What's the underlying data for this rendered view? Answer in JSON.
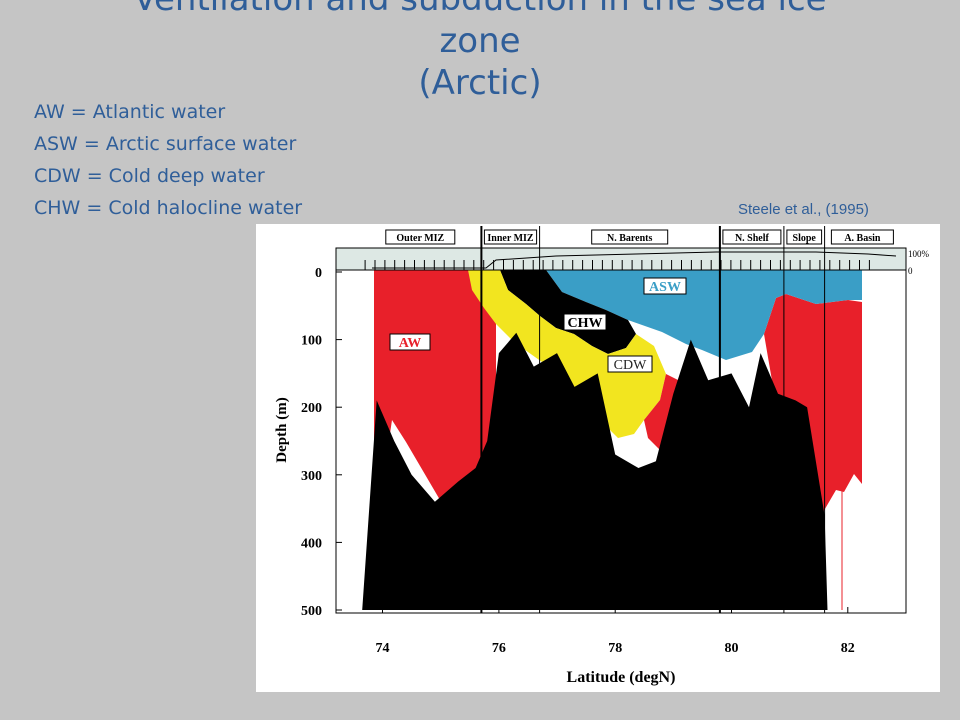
{
  "slide": {
    "title_line1": "Ventilation and subduction in the sea ice",
    "title_line2": "zone",
    "title_line3": "(Arctic)",
    "legend": [
      "AW = Atlantic water",
      "ASW = Arctic surface water",
      "CDW = Cold deep water",
      "CHW = Cold halocline water"
    ],
    "citation": "Steele et al., (1995)"
  },
  "chart_data": {
    "type": "heatmap",
    "xlabel": "Latitude (degN)",
    "ylabel": "Depth (m)",
    "xlim": [
      73.2,
      83.0
    ],
    "ylim": [
      0,
      500
    ],
    "y_inverted": true,
    "x_ticks": [
      "74",
      "76",
      "78",
      "80",
      "82"
    ],
    "y_ticks": [
      "0",
      "100",
      "200",
      "300",
      "400",
      "500"
    ],
    "ice_scale_labels": [
      "100%",
      "0"
    ],
    "regions": [
      {
        "label": "Outer MIZ",
        "from": 73.6,
        "to": 75.7
      },
      {
        "label": "Inner MIZ",
        "from": 75.7,
        "to": 76.7
      },
      {
        "label": "N. Barents",
        "from": 76.7,
        "to": 79.8
      },
      {
        "label": "N. Shelf",
        "from": 79.8,
        "to": 80.9
      },
      {
        "label": "Slope",
        "from": 80.9,
        "to": 81.6
      },
      {
        "label": "A. Basin",
        "from": 81.6,
        "to": 82.9
      }
    ],
    "water_masses": [
      {
        "label": "AW",
        "color": "#e8202a"
      },
      {
        "label": "ASW",
        "color": "#3a9ec6"
      },
      {
        "label": "CHW",
        "color": "#000000"
      },
      {
        "label": "CDW",
        "color": "#f2e51f"
      }
    ],
    "bottom_depth_profile": [
      [
        73.65,
        500
      ],
      [
        73.9,
        190
      ],
      [
        74.2,
        250
      ],
      [
        74.5,
        300
      ],
      [
        74.9,
        340
      ],
      [
        75.3,
        310
      ],
      [
        75.6,
        290
      ],
      [
        75.8,
        250
      ],
      [
        76.0,
        120
      ],
      [
        76.3,
        90
      ],
      [
        76.6,
        140
      ],
      [
        77.0,
        120
      ],
      [
        77.3,
        170
      ],
      [
        77.7,
        150
      ],
      [
        78.0,
        270
      ],
      [
        78.4,
        290
      ],
      [
        78.7,
        280
      ],
      [
        79.0,
        180
      ],
      [
        79.3,
        100
      ],
      [
        79.6,
        160
      ],
      [
        80.0,
        150
      ],
      [
        80.3,
        200
      ],
      [
        80.5,
        120
      ],
      [
        80.8,
        180
      ],
      [
        81.1,
        190
      ],
      [
        81.3,
        200
      ],
      [
        81.6,
        360
      ],
      [
        81.65,
        500
      ]
    ]
  },
  "colors": {
    "title": "#2f5e99",
    "background": "#c5c5c5",
    "atlantic_water": "#e8202a",
    "arctic_surface_water": "#3a9ec6",
    "cold_deep_water": "#f2e51f",
    "bathymetry": "#000000"
  }
}
